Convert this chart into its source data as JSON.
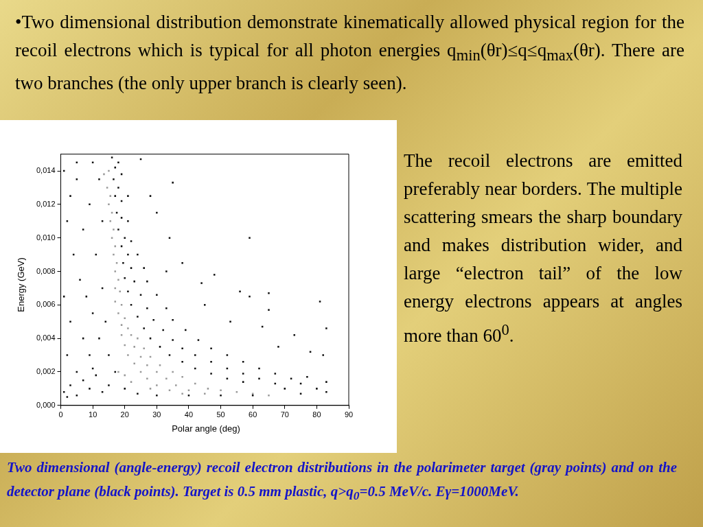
{
  "chart_data": {
    "type": "scatter",
    "title": "•Two dimensional distribution demonstrate kinematically allowed physical region for the recoil electrons which is typical for all photon energies q$_{min}$(θr)≤q≤q$_{max}$(θr). There are two branches (the only upper branch is clearly seen).",
    "xlabel": "Polar angle (deg)",
    "ylabel": "Energy (GeV)",
    "xlim": [
      0,
      90
    ],
    "xticks": [
      0,
      10,
      20,
      30,
      40,
      50,
      60,
      70,
      80,
      90
    ],
    "ylim": [
      0,
      0.015
    ],
    "yticks": [
      {
        "value": 0,
        "label": "0,000"
      },
      {
        "value": 0.002,
        "label": "0,002"
      },
      {
        "value": 0.004,
        "label": "0,004"
      },
      {
        "value": 0.006,
        "label": "0,006"
      },
      {
        "value": 0.008,
        "label": "0,008"
      },
      {
        "value": 0.01,
        "label": "0,010"
      },
      {
        "value": 0.012,
        "label": "0,012"
      },
      {
        "value": 0.014,
        "label": "0,014"
      }
    ],
    "grid": false,
    "legend": false,
    "marker": "square",
    "series": [
      {
        "color": "#111111",
        "x": [
          16,
          17,
          18,
          16.5,
          18,
          19,
          17,
          19,
          21,
          17.5,
          19,
          21,
          18,
          20,
          22,
          19,
          21,
          24,
          19.5,
          22,
          26,
          20,
          23,
          27,
          21,
          25,
          30,
          22,
          27,
          33,
          24,
          29,
          35,
          26,
          32,
          39,
          28,
          35,
          43,
          31,
          38,
          47,
          34,
          42,
          52,
          38,
          47,
          57,
          42,
          52,
          62,
          47,
          57,
          67,
          52,
          62,
          72,
          77,
          57,
          67,
          75,
          83,
          70,
          80,
          83,
          75,
          1,
          3,
          5,
          7,
          9,
          11,
          13,
          15,
          17,
          10,
          5,
          20,
          24,
          30,
          40,
          50,
          60,
          2,
          1,
          3,
          2,
          5,
          4,
          7,
          6,
          9,
          8,
          11,
          10,
          12,
          13,
          3,
          1,
          7,
          12,
          14,
          15,
          2,
          9,
          5,
          10,
          13,
          25,
          28,
          30,
          35,
          34,
          38,
          44,
          48,
          56,
          59,
          59,
          65,
          65,
          81,
          83,
          73,
          63,
          53,
          68,
          78,
          82,
          45,
          33
        ],
        "values": [
          0.0148,
          0.0142,
          0.0145,
          0.0135,
          0.013,
          0.0138,
          0.0125,
          0.0122,
          0.0125,
          0.0115,
          0.0112,
          0.011,
          0.0105,
          0.01,
          0.0098,
          0.0095,
          0.009,
          0.009,
          0.0085,
          0.0082,
          0.0082,
          0.0076,
          0.0074,
          0.0074,
          0.0068,
          0.0066,
          0.0066,
          0.006,
          0.0058,
          0.0058,
          0.0053,
          0.0051,
          0.0051,
          0.0046,
          0.0045,
          0.0045,
          0.004,
          0.0039,
          0.0039,
          0.0035,
          0.0034,
          0.0034,
          0.003,
          0.003,
          0.003,
          0.0026,
          0.0026,
          0.0026,
          0.0022,
          0.0022,
          0.0022,
          0.0019,
          0.0019,
          0.0019,
          0.0016,
          0.0016,
          0.0016,
          0.0017,
          0.0014,
          0.0013,
          0.0013,
          0.0014,
          0.001,
          0.001,
          0.0008,
          0.0007,
          0.0008,
          0.0012,
          0.0006,
          0.0015,
          0.001,
          0.0018,
          0.0008,
          0.0012,
          0.002,
          0.0022,
          0.002,
          0.001,
          0.0007,
          0.0006,
          0.0006,
          0.0006,
          0.0006,
          0.0005,
          0.014,
          0.0125,
          0.011,
          0.0135,
          0.009,
          0.0105,
          0.0075,
          0.012,
          0.0065,
          0.009,
          0.0055,
          0.0135,
          0.007,
          0.005,
          0.0065,
          0.004,
          0.004,
          0.005,
          0.003,
          0.003,
          0.003,
          0.0145,
          0.0145,
          0.011,
          0.0147,
          0.0125,
          0.0115,
          0.0133,
          0.01,
          0.0085,
          0.0073,
          0.0078,
          0.0068,
          0.01,
          0.0065,
          0.0067,
          0.0057,
          0.0062,
          0.0046,
          0.0042,
          0.0047,
          0.005,
          0.0035,
          0.0032,
          0.003,
          0.006,
          0.008
        ]
      },
      {
        "color": "#9a9a9a",
        "x": [
          13.5,
          15,
          14.5,
          15.5,
          15,
          16,
          15.5,
          16.5,
          16,
          17,
          16.5,
          17.5,
          17,
          18,
          17,
          18.5,
          17,
          19,
          18,
          20,
          19,
          21,
          19,
          22,
          24,
          20,
          23,
          26,
          21,
          25,
          28,
          23,
          27,
          31,
          25,
          30,
          35,
          27,
          33,
          38,
          30,
          36,
          42,
          34,
          40,
          46,
          50,
          45,
          55,
          60,
          65,
          38,
          28,
          22,
          18,
          20
        ],
        "values": [
          0.0138,
          0.014,
          0.013,
          0.0125,
          0.012,
          0.0115,
          0.011,
          0.0105,
          0.01,
          0.0095,
          0.009,
          0.0085,
          0.008,
          0.0075,
          0.007,
          0.0068,
          0.0062,
          0.006,
          0.0055,
          0.0052,
          0.0048,
          0.0046,
          0.0042,
          0.0042,
          0.004,
          0.0036,
          0.0035,
          0.0034,
          0.003,
          0.0029,
          0.0029,
          0.0025,
          0.0024,
          0.0024,
          0.002,
          0.002,
          0.002,
          0.0016,
          0.0016,
          0.0017,
          0.0012,
          0.0012,
          0.0013,
          0.0009,
          0.0009,
          0.001,
          0.0009,
          0.0007,
          0.0008,
          0.0007,
          0.0006,
          0.0007,
          0.001,
          0.0014,
          0.002,
          0.0018
        ]
      }
    ],
    "annotations": [
      "The recoil electrons are emitted preferably near borders. The multiple scattering smears the sharp boundary and makes distribution wider, and large “electron tail” of the low energy electrons appears at angles more than 60$^{0}$.",
      "Two dimensional (angle-energy) recoil electron distributions in the polarimeter target (gray points) and on the detector plane (black points). Target is 0.5 mm plastic, q>q$_{0}$=0.5 MeV/c. Eγ=1000MeV."
    ]
  }
}
